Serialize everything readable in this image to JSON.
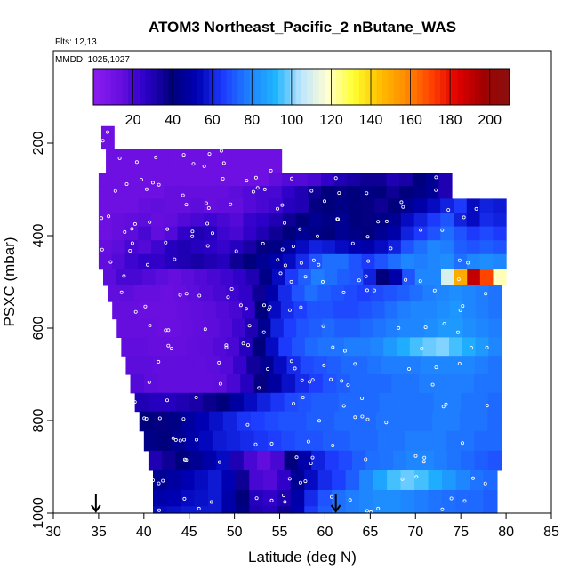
{
  "chart_data": {
    "type": "heatmap",
    "title": "ATOM3 Northeast_Pacific_2 nButane_WAS",
    "flights_label": "Flts: 12,13",
    "mmdd_label": "MMDD: 1025,1027",
    "xlabel": "Latitude (deg N)",
    "ylabel": "PSXC (mbar)",
    "xlim": [
      30,
      85
    ],
    "ylim": [
      1000,
      0
    ],
    "x_ticks": [
      "30",
      "35",
      "40",
      "45",
      "50",
      "55",
      "60",
      "65",
      "70",
      "75",
      "80",
      "85"
    ],
    "y_ticks": [
      "200",
      "400",
      "600",
      "800",
      "1000"
    ],
    "colorbar": {
      "range": [
        0,
        210
      ],
      "tick_labels": [
        "20",
        "40",
        "60",
        "80",
        "100",
        "120",
        "140",
        "160",
        "180",
        "200"
      ],
      "colors": [
        "#8b1cf0",
        "#6a0fe0",
        "#2b00c8",
        "#00007a",
        "#0000b4",
        "#1e3cff",
        "#1e82ff",
        "#1eb4ff",
        "#bfe6ff",
        "#ffffd0",
        "#ffff30",
        "#ffc000",
        "#ff8c00",
        "#ff4000",
        "#e00000",
        "#a00000",
        "#8a1010"
      ]
    },
    "rows": [
      {
        "p": 175,
        "lat0": 35.3,
        "lat1": 36.7,
        "v": [
          12
        ]
      },
      {
        "p": 200,
        "lat0": 35.3,
        "lat1": 36.7,
        "v": [
          12
        ]
      },
      {
        "p": 225,
        "lat0": 35.8,
        "lat1": 55.2,
        "v": [
          12,
          12,
          12,
          12,
          12,
          12,
          12,
          12,
          12,
          12,
          12,
          12,
          12,
          12
        ]
      },
      {
        "p": 250,
        "lat0": 35.8,
        "lat1": 55.2,
        "v": [
          12,
          12,
          12,
          12,
          12,
          12,
          12,
          12,
          12,
          12,
          12,
          12,
          12,
          12
        ]
      },
      {
        "p": 280,
        "lat0": 35.0,
        "lat1": 74.0,
        "v": [
          12,
          12,
          12,
          12,
          12,
          12,
          12,
          12,
          12,
          12,
          12,
          12,
          12,
          15,
          18,
          18,
          20,
          25,
          30,
          32,
          35,
          35,
          30,
          32,
          40,
          45,
          30
        ]
      },
      {
        "p": 305,
        "lat0": 35.0,
        "lat1": 74.0,
        "v": [
          12,
          12,
          12,
          12,
          12,
          14,
          14,
          14,
          14,
          14,
          16,
          18,
          20,
          20,
          25,
          30,
          35,
          40,
          38,
          40,
          42,
          40,
          35,
          40,
          42,
          45,
          30
        ]
      },
      {
        "p": 335,
        "lat0": 35.0,
        "lat1": 80.0,
        "v": [
          12,
          12,
          12,
          14,
          15,
          14,
          14,
          16,
          14,
          15,
          15,
          18,
          20,
          22,
          28,
          30,
          38,
          40,
          42,
          40,
          38,
          35,
          40,
          45,
          50,
          55,
          60,
          65,
          55,
          60,
          58
        ]
      },
      {
        "p": 365,
        "lat0": 35.0,
        "lat1": 80.0,
        "v": [
          12,
          14,
          15,
          16,
          14,
          15,
          18,
          20,
          22,
          20,
          18,
          24,
          26,
          30,
          35,
          40,
          45,
          42,
          45,
          40,
          38,
          42,
          45,
          55,
          60,
          65,
          70,
          60,
          55,
          62,
          60
        ]
      },
      {
        "p": 395,
        "lat0": 35.0,
        "lat1": 80.0,
        "v": [
          12,
          14,
          16,
          20,
          15,
          18,
          25,
          30,
          28,
          22,
          20,
          25,
          30,
          35,
          40,
          45,
          42,
          40,
          45,
          42,
          40,
          45,
          50,
          60,
          65,
          70,
          75,
          70,
          65,
          68,
          65
        ]
      },
      {
        "p": 425,
        "lat0": 35.0,
        "lat1": 80.0,
        "v": [
          14,
          16,
          20,
          18,
          22,
          28,
          30,
          28,
          26,
          24,
          28,
          32,
          38,
          42,
          48,
          55,
          60,
          58,
          55,
          52,
          50,
          55,
          60,
          70,
          75,
          80,
          78,
          72,
          70,
          72,
          70
        ]
      },
      {
        "p": 455,
        "lat0": 35.0,
        "lat1": 80.0,
        "v": [
          15,
          18,
          22,
          25,
          25,
          28,
          30,
          32,
          30,
          28,
          35,
          40,
          45,
          50,
          55,
          62,
          70,
          75,
          75,
          70,
          65,
          70,
          75,
          80,
          78,
          80,
          82,
          75,
          80,
          82,
          80
        ]
      },
      {
        "p": 490,
        "lat0": 35.5,
        "lat1": 80.0,
        "v": [
          16,
          20,
          20,
          18,
          16,
          14,
          16,
          18,
          20,
          22,
          25,
          30,
          42,
          55,
          65,
          72,
          78,
          75,
          72,
          70,
          60,
          40,
          50,
          70,
          80,
          80,
          110,
          150,
          190,
          170,
          120
        ]
      },
      {
        "p": 525,
        "lat0": 36.0,
        "lat1": 79.5,
        "v": [
          15,
          16,
          14,
          14,
          13,
          14,
          16,
          18,
          20,
          22,
          25,
          35,
          50,
          62,
          70,
          75,
          72,
          70,
          68,
          66,
          68,
          70,
          72,
          75,
          78,
          80,
          82,
          80,
          78,
          76
        ]
      },
      {
        "p": 560,
        "lat0": 36.5,
        "lat1": 79.5,
        "v": [
          14,
          14,
          13,
          13,
          13,
          14,
          15,
          16,
          18,
          20,
          25,
          40,
          55,
          62,
          66,
          70,
          70,
          68,
          68,
          70,
          72,
          75,
          78,
          80,
          80,
          82,
          84,
          80,
          78,
          76
        ]
      },
      {
        "p": 600,
        "lat0": 37.0,
        "lat1": 79.5,
        "v": [
          14,
          14,
          14,
          13,
          13,
          14,
          15,
          16,
          18,
          22,
          30,
          45,
          60,
          66,
          70,
          72,
          74,
          72,
          72,
          74,
          76,
          78,
          80,
          80,
          82,
          85,
          85,
          82,
          80,
          78
        ]
      },
      {
        "p": 640,
        "lat0": 37.5,
        "lat1": 79.5,
        "v": [
          15,
          15,
          14,
          14,
          14,
          15,
          16,
          18,
          20,
          28,
          40,
          55,
          65,
          70,
          74,
          76,
          76,
          78,
          78,
          80,
          85,
          90,
          95,
          98,
          100,
          95,
          90,
          85,
          80
        ]
      },
      {
        "p": 680,
        "lat0": 38.0,
        "lat1": 79.5,
        "v": [
          16,
          16,
          15,
          15,
          15,
          15,
          16,
          18,
          24,
          34,
          45,
          55,
          62,
          68,
          70,
          72,
          74,
          74,
          76,
          78,
          78,
          78,
          80,
          80,
          80,
          80,
          78,
          76
        ]
      },
      {
        "p": 720,
        "lat0": 38.5,
        "lat1": 79.5,
        "v": [
          18,
          16,
          15,
          15,
          15,
          15,
          16,
          20,
          28,
          38,
          48,
          56,
          62,
          66,
          70,
          72,
          74,
          74,
          74,
          76,
          76,
          78,
          78,
          78,
          78,
          76,
          76
        ]
      },
      {
        "p": 760,
        "lat0": 39.0,
        "lat1": 79.5,
        "v": [
          30,
          28,
          28,
          30,
          32,
          36,
          40,
          48,
          55,
          60,
          64,
          68,
          70,
          72,
          72,
          74,
          74,
          74,
          76,
          76,
          76,
          76,
          78,
          78,
          76,
          76,
          74
        ]
      },
      {
        "p": 800,
        "lat0": 39.5,
        "lat1": 79.5,
        "v": [
          40,
          38,
          42,
          48,
          52,
          56,
          60,
          64,
          66,
          68,
          70,
          70,
          72,
          72,
          74,
          74,
          74,
          76,
          76,
          76,
          76,
          78,
          78,
          76,
          76,
          74
        ]
      },
      {
        "p": 845,
        "lat0": 40.0,
        "lat1": 79.5,
        "v": [
          42,
          40,
          45,
          50,
          54,
          58,
          60,
          62,
          64,
          66,
          68,
          70,
          70,
          72,
          72,
          74,
          74,
          76,
          76,
          78,
          78,
          78,
          76,
          76,
          74,
          74
        ]
      },
      {
        "p": 885,
        "lat0": 40.5,
        "lat1": 79.5,
        "v": [
          30,
          35,
          40,
          45,
          50,
          55,
          30,
          20,
          15,
          20,
          40,
          50,
          60,
          65,
          68,
          72,
          75,
          76,
          78,
          80,
          80,
          78,
          76,
          74,
          72,
          70
        ]
      },
      {
        "p": 930,
        "lat0": 41.0,
        "lat1": 79.0,
        "v": [
          45,
          48,
          52,
          55,
          58,
          52,
          35,
          20,
          18,
          25,
          45,
          55,
          62,
          66,
          72,
          80,
          88,
          95,
          98,
          95,
          90,
          85,
          80,
          76,
          74
        ]
      },
      {
        "p": 970,
        "lat0": 41.0,
        "lat1": 79.0,
        "v": [
          50,
          52,
          55,
          56,
          58,
          50,
          40,
          28,
          25,
          30,
          50,
          62,
          70,
          75,
          78,
          80,
          82,
          82,
          80,
          78,
          76,
          75,
          74,
          74,
          72
        ]
      },
      {
        "p": 1000,
        "lat0": 41.0,
        "lat1": 79.0,
        "v": [
          55,
          56,
          58,
          58,
          58,
          50,
          42,
          30,
          28,
          35,
          52,
          65,
          72,
          76,
          78,
          80,
          82,
          82,
          80,
          78,
          76,
          75,
          74,
          74,
          72
        ]
      }
    ],
    "markers": [
      {
        "lat": 34.7,
        "label": ""
      },
      {
        "lat": 61.2,
        "label": ""
      }
    ]
  }
}
